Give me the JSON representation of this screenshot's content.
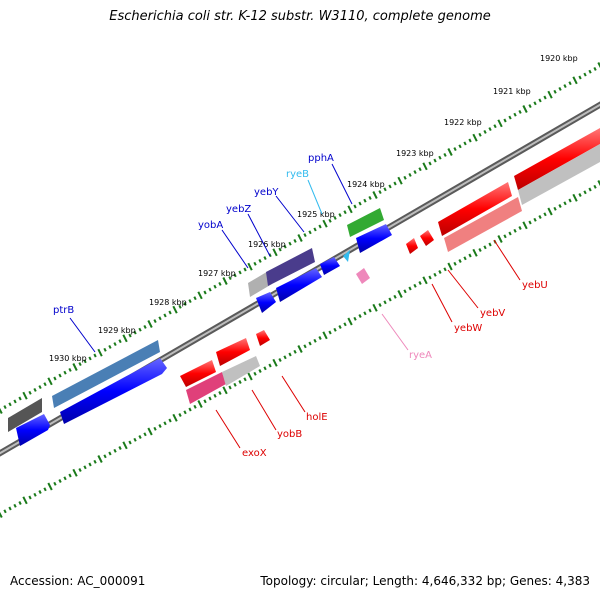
{
  "title": "Escherichia coli str. K-12 substr. W3110, complete genome",
  "footer": {
    "accession": "Accession: AC_000091",
    "topology": "Topology: circular; Length: 4,646,332 bp; Genes: 4,383"
  },
  "colors": {
    "backbone": "#808080",
    "ticks": "#1a7a1a",
    "forward_gene": "#0000ff",
    "reverse_gene": "#ff0000",
    "pseudo_gene": "#b0b0b0",
    "rna_gene": "#33bbee"
  },
  "kbp_labels": [
    "1920 kbp",
    "1921 kbp",
    "1922 kbp",
    "1923 kbp",
    "1924 kbp",
    "1925 kbp",
    "1926 kbp",
    "1927 kbp",
    "1928 kbp",
    "1929 kbp",
    "1930 kbp"
  ],
  "genes": [
    {
      "name": "ptrB",
      "color": "#0000cc"
    },
    {
      "name": "yobA",
      "color": "#0000cc"
    },
    {
      "name": "yebZ",
      "color": "#0000cc"
    },
    {
      "name": "yebY",
      "color": "#0000cc"
    },
    {
      "name": "ryeB",
      "color": "#33bbee"
    },
    {
      "name": "pphA",
      "color": "#0000cc"
    },
    {
      "name": "yebU",
      "color": "#dd0000"
    },
    {
      "name": "yebV",
      "color": "#dd0000"
    },
    {
      "name": "yebW",
      "color": "#dd0000"
    },
    {
      "name": "ryeA",
      "color": "#ee88bb"
    },
    {
      "name": "holE",
      "color": "#dd0000"
    },
    {
      "name": "yobB",
      "color": "#dd0000"
    },
    {
      "name": "exoX",
      "color": "#dd0000"
    }
  ]
}
